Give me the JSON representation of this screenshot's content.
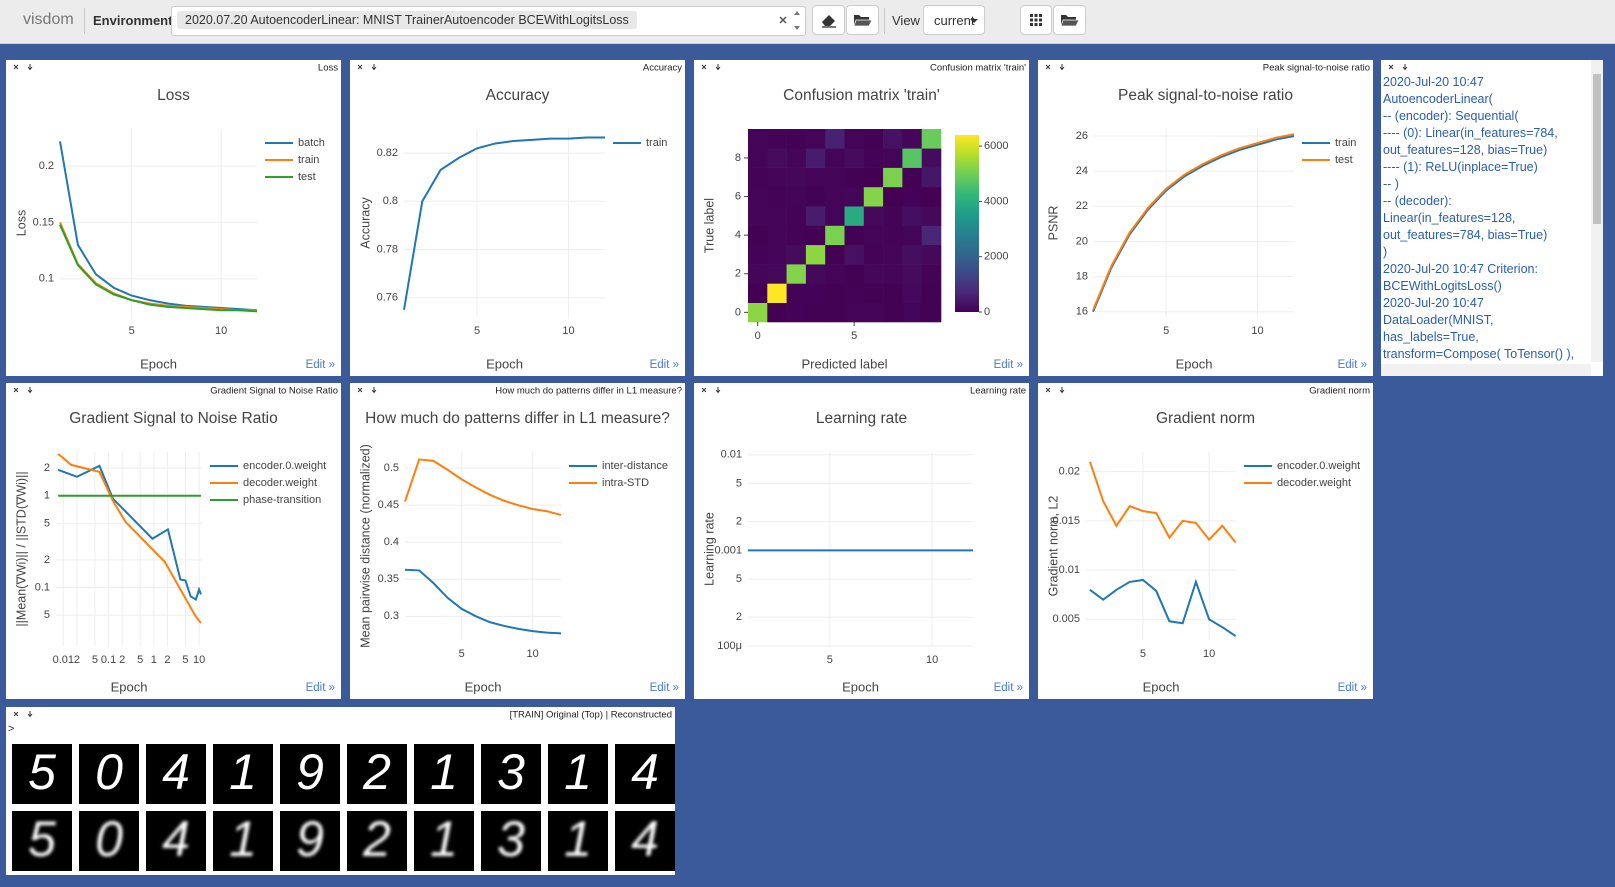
{
  "header": {
    "brand": "visdom",
    "env_label": "Environment",
    "env_value": "2020.07.20 AutoencoderLinear: MNIST TrainerAutoencoder BCEWithLogitsLoss",
    "view_label": "View",
    "view_value": "current"
  },
  "edit_link": "Edit »",
  "chart_data": [
    {
      "type": "line",
      "title": "Loss",
      "xlabel": "Epoch",
      "ylabel": "Loss",
      "x": [
        1,
        2,
        3,
        4,
        5,
        6,
        7,
        8,
        9,
        10,
        11,
        12
      ],
      "series": [
        {
          "name": "batch",
          "color": "#1f77b4",
          "values": [
            0.222,
            0.13,
            0.104,
            0.092,
            0.085,
            0.081,
            0.078,
            0.076,
            0.075,
            0.074,
            0.073,
            0.072
          ]
        },
        {
          "name": "train",
          "color": "#ff7f0e",
          "values": [
            0.15,
            0.113,
            0.096,
            0.087,
            0.081,
            0.078,
            0.076,
            0.075,
            0.074,
            0.073,
            0.072,
            0.072
          ]
        },
        {
          "name": "test",
          "color": "#2ca02c",
          "values": [
            0.148,
            0.112,
            0.095,
            0.086,
            0.081,
            0.077,
            0.075,
            0.074,
            0.073,
            0.072,
            0.072,
            0.071
          ]
        }
      ],
      "xlim": [
        1,
        12
      ],
      "ylim": [
        0.066,
        0.233
      ],
      "xticks": [
        5,
        10
      ],
      "yticks": [
        0.1,
        0.15,
        0.2
      ],
      "grid": true,
      "legend": "top-right"
    },
    {
      "type": "line",
      "title": "Accuracy",
      "xlabel": "Epoch",
      "ylabel": "Accuracy",
      "x": [
        1,
        2,
        3,
        4,
        5,
        6,
        7,
        8,
        9,
        10,
        11,
        12
      ],
      "series": [
        {
          "name": "train",
          "color": "#1f77b4",
          "values": [
            0.755,
            0.8,
            0.813,
            0.818,
            0.822,
            0.824,
            0.825,
            0.8255,
            0.826,
            0.826,
            0.8265,
            0.8265
          ]
        }
      ],
      "xlim": [
        1,
        12
      ],
      "ylim": [
        0.752,
        0.83
      ],
      "xticks": [
        5,
        10
      ],
      "yticks": [
        0.76,
        0.78,
        0.8,
        0.82
      ],
      "grid": true,
      "legend": "top-right"
    },
    {
      "type": "heatmap",
      "title": "Confusion matrix 'train'",
      "xlabel": "Predicted label",
      "ylabel": "True label",
      "colorscale": "Viridis",
      "x": [
        0,
        1,
        2,
        3,
        4,
        5,
        6,
        7,
        8,
        9
      ],
      "y": [
        0,
        1,
        2,
        3,
        4,
        5,
        6,
        7,
        8,
        9
      ],
      "z": [
        [
          5300,
          0,
          40,
          20,
          10,
          60,
          80,
          10,
          60,
          20
        ],
        [
          0,
          6400,
          40,
          30,
          10,
          40,
          10,
          20,
          150,
          20
        ],
        [
          90,
          120,
          5200,
          150,
          80,
          20,
          110,
          100,
          200,
          30
        ],
        [
          40,
          70,
          200,
          5300,
          10,
          300,
          40,
          80,
          250,
          120
        ],
        [
          20,
          60,
          40,
          10,
          5100,
          10,
          80,
          30,
          50,
          700
        ],
        [
          100,
          60,
          30,
          500,
          70,
          3900,
          120,
          40,
          250,
          150
        ],
        [
          60,
          40,
          50,
          10,
          70,
          100,
          5200,
          0,
          40,
          0
        ],
        [
          30,
          100,
          110,
          60,
          80,
          10,
          0,
          5100,
          20,
          400
        ],
        [
          60,
          180,
          90,
          500,
          60,
          200,
          40,
          60,
          4700,
          200
        ],
        [
          50,
          30,
          20,
          80,
          600,
          50,
          10,
          300,
          100,
          4900
        ]
      ],
      "zlim": [
        0,
        6400
      ],
      "zticks": [
        0,
        2000,
        4000,
        6000
      ],
      "xlim": [
        -0.5,
        9.5
      ],
      "ylim": [
        -0.5,
        9.5
      ],
      "xticks": [
        0,
        5
      ],
      "yticks": [
        0,
        2,
        4,
        6,
        8
      ]
    },
    {
      "type": "line",
      "title": "Peak signal-to-noise ratio",
      "xlabel": "Epoch",
      "ylabel": "PSNR",
      "x": [
        1,
        2,
        3,
        4,
        5,
        6,
        7,
        8,
        9,
        10,
        11,
        12
      ],
      "series": [
        {
          "name": "train",
          "color": "#1f77b4",
          "values": [
            16,
            18.5,
            20.4,
            21.8,
            22.9,
            23.7,
            24.3,
            24.8,
            25.2,
            25.5,
            25.8,
            26.0
          ]
        },
        {
          "name": "test",
          "color": "#ff7f0e",
          "values": [
            16.1,
            18.6,
            20.5,
            21.9,
            23.0,
            23.8,
            24.4,
            24.9,
            25.3,
            25.6,
            25.9,
            26.1
          ]
        }
      ],
      "xlim": [
        1.05,
        12
      ],
      "ylim": [
        15.7,
        26.4
      ],
      "xticks": [
        5,
        10
      ],
      "yticks": [
        16,
        18,
        20,
        22,
        24,
        26
      ],
      "grid": true,
      "legend": "top-right"
    },
    {
      "type": "line",
      "title": "Gradient Signal to Noise Ratio",
      "xlabel": "Epoch",
      "ylabel": "||Mean(∇Wi)|| / ||STD(∇Wi)||",
      "xscale": "log",
      "yscale": "log",
      "series": [
        {
          "name": "encoder.0.weight",
          "color": "#1f77b4",
          "x": [
            0.0077,
            0.02,
            0.063,
            0.125,
            0.93,
            2.05,
            3.86,
            5,
            6.5,
            8.5,
            10,
            11
          ],
          "values": [
            1.92,
            1.61,
            2.12,
            0.93,
            0.34,
            0.43,
            0.122,
            0.119,
            0.08,
            0.074,
            0.095,
            0.084
          ]
        },
        {
          "name": "decoder.weight",
          "color": "#ff7f0e",
          "x": [
            0.0077,
            0.015,
            0.063,
            0.125,
            0.236,
            1.75,
            5,
            8.5,
            11
          ],
          "values": [
            2.86,
            2.17,
            1.82,
            0.88,
            0.52,
            0.19,
            0.076,
            0.048,
            0.041
          ]
        },
        {
          "name": "phase-transition",
          "color": "#2ca02c",
          "x": [
            0.0077,
            11
          ],
          "values": [
            1,
            1
          ]
        }
      ],
      "xlim": [
        0.0069,
        11.6
      ],
      "ylim": [
        0.023,
        3
      ],
      "xticks": [
        0.01,
        {
          "value": 0.02,
          "label": "2"
        },
        {
          "value": 0.05,
          "label": "5"
        },
        0.1,
        {
          "value": 0.2,
          "label": "2"
        },
        {
          "value": 0.5,
          "label": "5"
        },
        1,
        2,
        5,
        10
      ],
      "yticks": [
        {
          "value": 0.05,
          "label": "5"
        },
        0.1,
        {
          "value": 0.2,
          "label": "2"
        },
        {
          "value": 0.5,
          "label": "5"
        },
        1,
        2
      ],
      "grid": true,
      "legend": "top-right"
    },
    {
      "type": "line",
      "title": "How much do patterns differ in L1 measure?",
      "xlabel": "Epoch",
      "ylabel": "Mean pairwise distance (normalized)",
      "x": [
        1,
        2,
        3,
        4,
        5,
        6,
        7,
        8,
        9,
        10,
        11,
        12
      ],
      "series": [
        {
          "name": "inter-distance",
          "color": "#1f77b4",
          "values": [
            0.363,
            0.362,
            0.345,
            0.325,
            0.31,
            0.3,
            0.292,
            0.287,
            0.283,
            0.28,
            0.278,
            0.277
          ]
        },
        {
          "name": "intra-STD",
          "color": "#ff7f0e",
          "values": [
            0.455,
            0.512,
            0.51,
            0.498,
            0.485,
            0.474,
            0.464,
            0.456,
            0.45,
            0.445,
            0.442,
            0.437
          ]
        }
      ],
      "xlim": [
        1,
        12
      ],
      "ylim": [
        0.268,
        0.522
      ],
      "xticks": [
        5,
        10
      ],
      "yticks": [
        0.3,
        0.35,
        0.4,
        0.45,
        0.5
      ],
      "grid": true,
      "legend": "top-right"
    },
    {
      "type": "line",
      "title": "Learning rate",
      "xlabel": "Epoch",
      "ylabel": "Learning rate",
      "yscale": "log",
      "x": [
        1,
        2,
        3,
        4,
        5,
        6,
        7,
        8,
        9,
        10,
        11,
        12
      ],
      "values": [
        0.001,
        0.001,
        0.001,
        0.001,
        0.001,
        0.001,
        0.001,
        0.001,
        0.001,
        0.001,
        0.001,
        0.001
      ],
      "color": "#1f77b4",
      "xlim": [
        1,
        12
      ],
      "ylim": [
        0.0001,
        0.0107
      ],
      "xticks": [
        5,
        10
      ],
      "yticks": [
        {
          "value": 0.0001,
          "label": "100μ"
        },
        {
          "value": 0.0002,
          "label": "2"
        },
        {
          "value": 0.0005,
          "label": "5"
        },
        0.001,
        {
          "value": 0.002,
          "label": "2"
        },
        {
          "value": 0.005,
          "label": "5"
        },
        0.01
      ],
      "grid": true
    },
    {
      "type": "line",
      "title": "Gradient norm",
      "xlabel": "Epoch",
      "ylabel": "Gradient norm, L2",
      "x": [
        1,
        2,
        3,
        4,
        5,
        6,
        7,
        8,
        9,
        10,
        11,
        12
      ],
      "series": [
        {
          "name": "encoder.0.weight",
          "color": "#1f77b4",
          "values": [
            0.008,
            0.007,
            0.008,
            0.0088,
            0.009,
            0.0079,
            0.0048,
            0.0046,
            0.0088,
            0.005,
            0.0042,
            0.0033
          ]
        },
        {
          "name": "decoder.weight",
          "color": "#ff7f0e",
          "values": [
            0.021,
            0.017,
            0.0145,
            0.0165,
            0.016,
            0.0158,
            0.0133,
            0.015,
            0.0148,
            0.0131,
            0.0145,
            0.0128
          ]
        }
      ],
      "xlim": [
        0.7,
        12.03
      ],
      "ylim": [
        0.0029,
        0.022
      ],
      "xticks": [
        5,
        10
      ],
      "yticks": [
        0.005,
        0.01,
        0.015,
        0.02
      ],
      "grid": true,
      "legend": "top-right"
    }
  ],
  "text_pane": {
    "lines": [
      "2020-Jul-20 10:47",
      "AutoencoderLinear(",
      "-- (encoder): Sequential(",
      "---- (0): Linear(in_features=784,",
      "out_features=128, bias=True)",
      "---- (1): ReLU(inplace=True)",
      "-- )",
      "-- (decoder):",
      "Linear(in_features=128,",
      "out_features=784, bias=True)",
      ")",
      "2020-Jul-20 10:47 Criterion:",
      "BCEWithLogitsLoss()",
      "2020-Jul-20 10:47",
      "DataLoader(MNIST,",
      "has_labels=True,",
      "transform=Compose( ToTensor() ),"
    ]
  },
  "image_pane": {
    "title": "[TRAIN] Original (Top) | Reconstructed",
    "prompt": ">",
    "digits": [
      "5",
      "0",
      "4",
      "1",
      "9",
      "2",
      "1",
      "3",
      "1",
      "4"
    ]
  }
}
